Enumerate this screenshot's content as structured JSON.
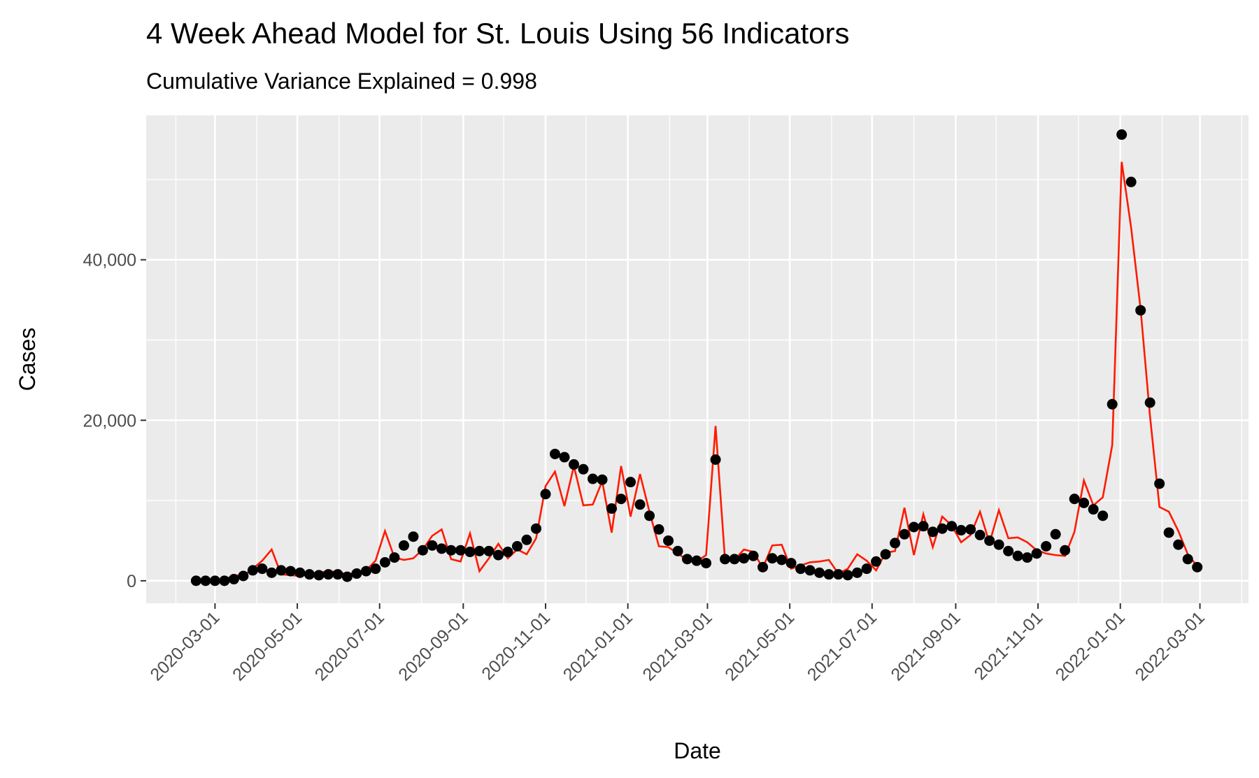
{
  "chart_data": {
    "type": "line",
    "title": "4 Week Ahead Model for St. Louis Using 56 Indicators",
    "subtitle": "Cumulative Variance Explained = 0.998",
    "x_label": "Date",
    "y_label": "Cases",
    "x": [
      "2020-02-16",
      "2020-02-23",
      "2020-03-01",
      "2020-03-08",
      "2020-03-15",
      "2020-03-22",
      "2020-03-29",
      "2020-04-05",
      "2020-04-12",
      "2020-04-19",
      "2020-04-26",
      "2020-05-03",
      "2020-05-10",
      "2020-05-17",
      "2020-05-24",
      "2020-05-31",
      "2020-06-07",
      "2020-06-14",
      "2020-06-21",
      "2020-06-28",
      "2020-07-05",
      "2020-07-12",
      "2020-07-19",
      "2020-07-26",
      "2020-08-02",
      "2020-08-09",
      "2020-08-16",
      "2020-08-23",
      "2020-08-30",
      "2020-09-06",
      "2020-09-13",
      "2020-09-20",
      "2020-09-27",
      "2020-10-04",
      "2020-10-11",
      "2020-10-18",
      "2020-10-25",
      "2020-11-01",
      "2020-11-08",
      "2020-11-15",
      "2020-11-22",
      "2020-11-29",
      "2020-12-06",
      "2020-12-13",
      "2020-12-20",
      "2020-12-27",
      "2021-01-03",
      "2021-01-10",
      "2021-01-17",
      "2021-01-24",
      "2021-01-31",
      "2021-02-07",
      "2021-02-14",
      "2021-02-21",
      "2021-02-28",
      "2021-03-07",
      "2021-03-14",
      "2021-03-21",
      "2021-03-28",
      "2021-04-04",
      "2021-04-11",
      "2021-04-18",
      "2021-04-25",
      "2021-05-02",
      "2021-05-09",
      "2021-05-16",
      "2021-05-23",
      "2021-05-30",
      "2021-06-06",
      "2021-06-13",
      "2021-06-20",
      "2021-06-27",
      "2021-07-04",
      "2021-07-11",
      "2021-07-18",
      "2021-07-25",
      "2021-08-01",
      "2021-08-08",
      "2021-08-15",
      "2021-08-22",
      "2021-08-29",
      "2021-09-05",
      "2021-09-12",
      "2021-09-19",
      "2021-09-26",
      "2021-10-03",
      "2021-10-10",
      "2021-10-17",
      "2021-10-24",
      "2021-10-31",
      "2021-11-07",
      "2021-11-14",
      "2021-11-21",
      "2021-11-28",
      "2021-12-05",
      "2021-12-12",
      "2021-12-19",
      "2021-12-26",
      "2022-01-02",
      "2022-01-09",
      "2022-01-16",
      "2022-01-23",
      "2022-01-30",
      "2022-02-06",
      "2022-02-13",
      "2022-02-20",
      "2022-02-27"
    ],
    "series": [
      {
        "type": "line",
        "color": "#ff1a00",
        "values": [
          0,
          0,
          0,
          100,
          700,
          600,
          1500,
          2500,
          3900,
          800,
          700,
          600,
          800,
          1000,
          1200,
          1100,
          800,
          1000,
          1300,
          2500,
          6200,
          2900,
          2600,
          2800,
          3900,
          5600,
          6400,
          2700,
          2400,
          5900,
          1200,
          2800,
          4600,
          2800,
          3900,
          3300,
          5300,
          11800,
          13600,
          9300,
          14300,
          9400,
          9500,
          12400,
          6000,
          14300,
          8000,
          13300,
          8600,
          4300,
          4200,
          3400,
          2600,
          2400,
          3200,
          19300,
          2600,
          2600,
          3900,
          3600,
          1600,
          4400,
          4500,
          1500,
          1900,
          2300,
          2400,
          2600,
          900,
          1500,
          3300,
          2500,
          1300,
          3500,
          3700,
          9100,
          3200,
          8300,
          4200,
          8000,
          6900,
          4800,
          5700,
          8600,
          4700,
          8800,
          5300,
          5400,
          4800,
          3800,
          3400,
          3200,
          3100,
          6100,
          12500,
          9400,
          10400,
          16900,
          52200,
          44000,
          33900,
          20500,
          9200,
          8600,
          6200,
          3300,
          1800
        ]
      },
      {
        "type": "scatter",
        "color": "#000000",
        "values": [
          0,
          0,
          0,
          0,
          200,
          600,
          1300,
          1500,
          1000,
          1300,
          1200,
          1000,
          800,
          700,
          800,
          800,
          500,
          900,
          1200,
          1500,
          2300,
          2900,
          4400,
          5500,
          3800,
          4400,
          4000,
          3800,
          3800,
          3600,
          3700,
          3700,
          3200,
          3600,
          4300,
          5100,
          6500,
          10800,
          15800,
          15400,
          14500,
          13900,
          12700,
          12600,
          9000,
          10200,
          12300,
          9500,
          8100,
          6400,
          5000,
          3700,
          2700,
          2500,
          2200,
          15100,
          2700,
          2700,
          2800,
          3100,
          1700,
          2800,
          2600,
          2200,
          1500,
          1300,
          1000,
          800,
          800,
          700,
          1000,
          1500,
          2400,
          3300,
          4700,
          5800,
          6700,
          6800,
          6100,
          6500,
          6800,
          6300,
          6400,
          5700,
          5000,
          4500,
          3700,
          3100,
          2900,
          3400,
          4300,
          5800,
          3800,
          10200,
          9700,
          8900,
          8100,
          22000,
          55600,
          49700,
          33700,
          22200,
          12100,
          6000,
          4500,
          2700,
          1700
        ]
      }
    ],
    "xlim": [
      "2020-01-10",
      "2022-04-06"
    ],
    "xticks": [
      "2020-03-01",
      "2020-05-01",
      "2020-07-01",
      "2020-09-01",
      "2020-11-01",
      "2021-01-01",
      "2021-03-01",
      "2021-05-01",
      "2021-07-01",
      "2021-09-01",
      "2021-11-01",
      "2022-01-01",
      "2022-03-01"
    ],
    "xminorticks": [
      "2020-02-01",
      "2020-04-01",
      "2020-06-01",
      "2020-08-01",
      "2020-10-01",
      "2020-12-01",
      "2021-02-01",
      "2021-04-01",
      "2021-06-01",
      "2021-08-01",
      "2021-10-01",
      "2021-12-01",
      "2022-02-01",
      "2022-04-01"
    ],
    "ylim": [
      -2800,
      58000
    ],
    "yticks": [
      0,
      {
        "value": 20000,
        "label": "20,000"
      },
      {
        "value": 40000,
        "label": "40,000"
      }
    ],
    "yminorticks": [
      10000,
      30000,
      50000
    ],
    "grid": true
  }
}
